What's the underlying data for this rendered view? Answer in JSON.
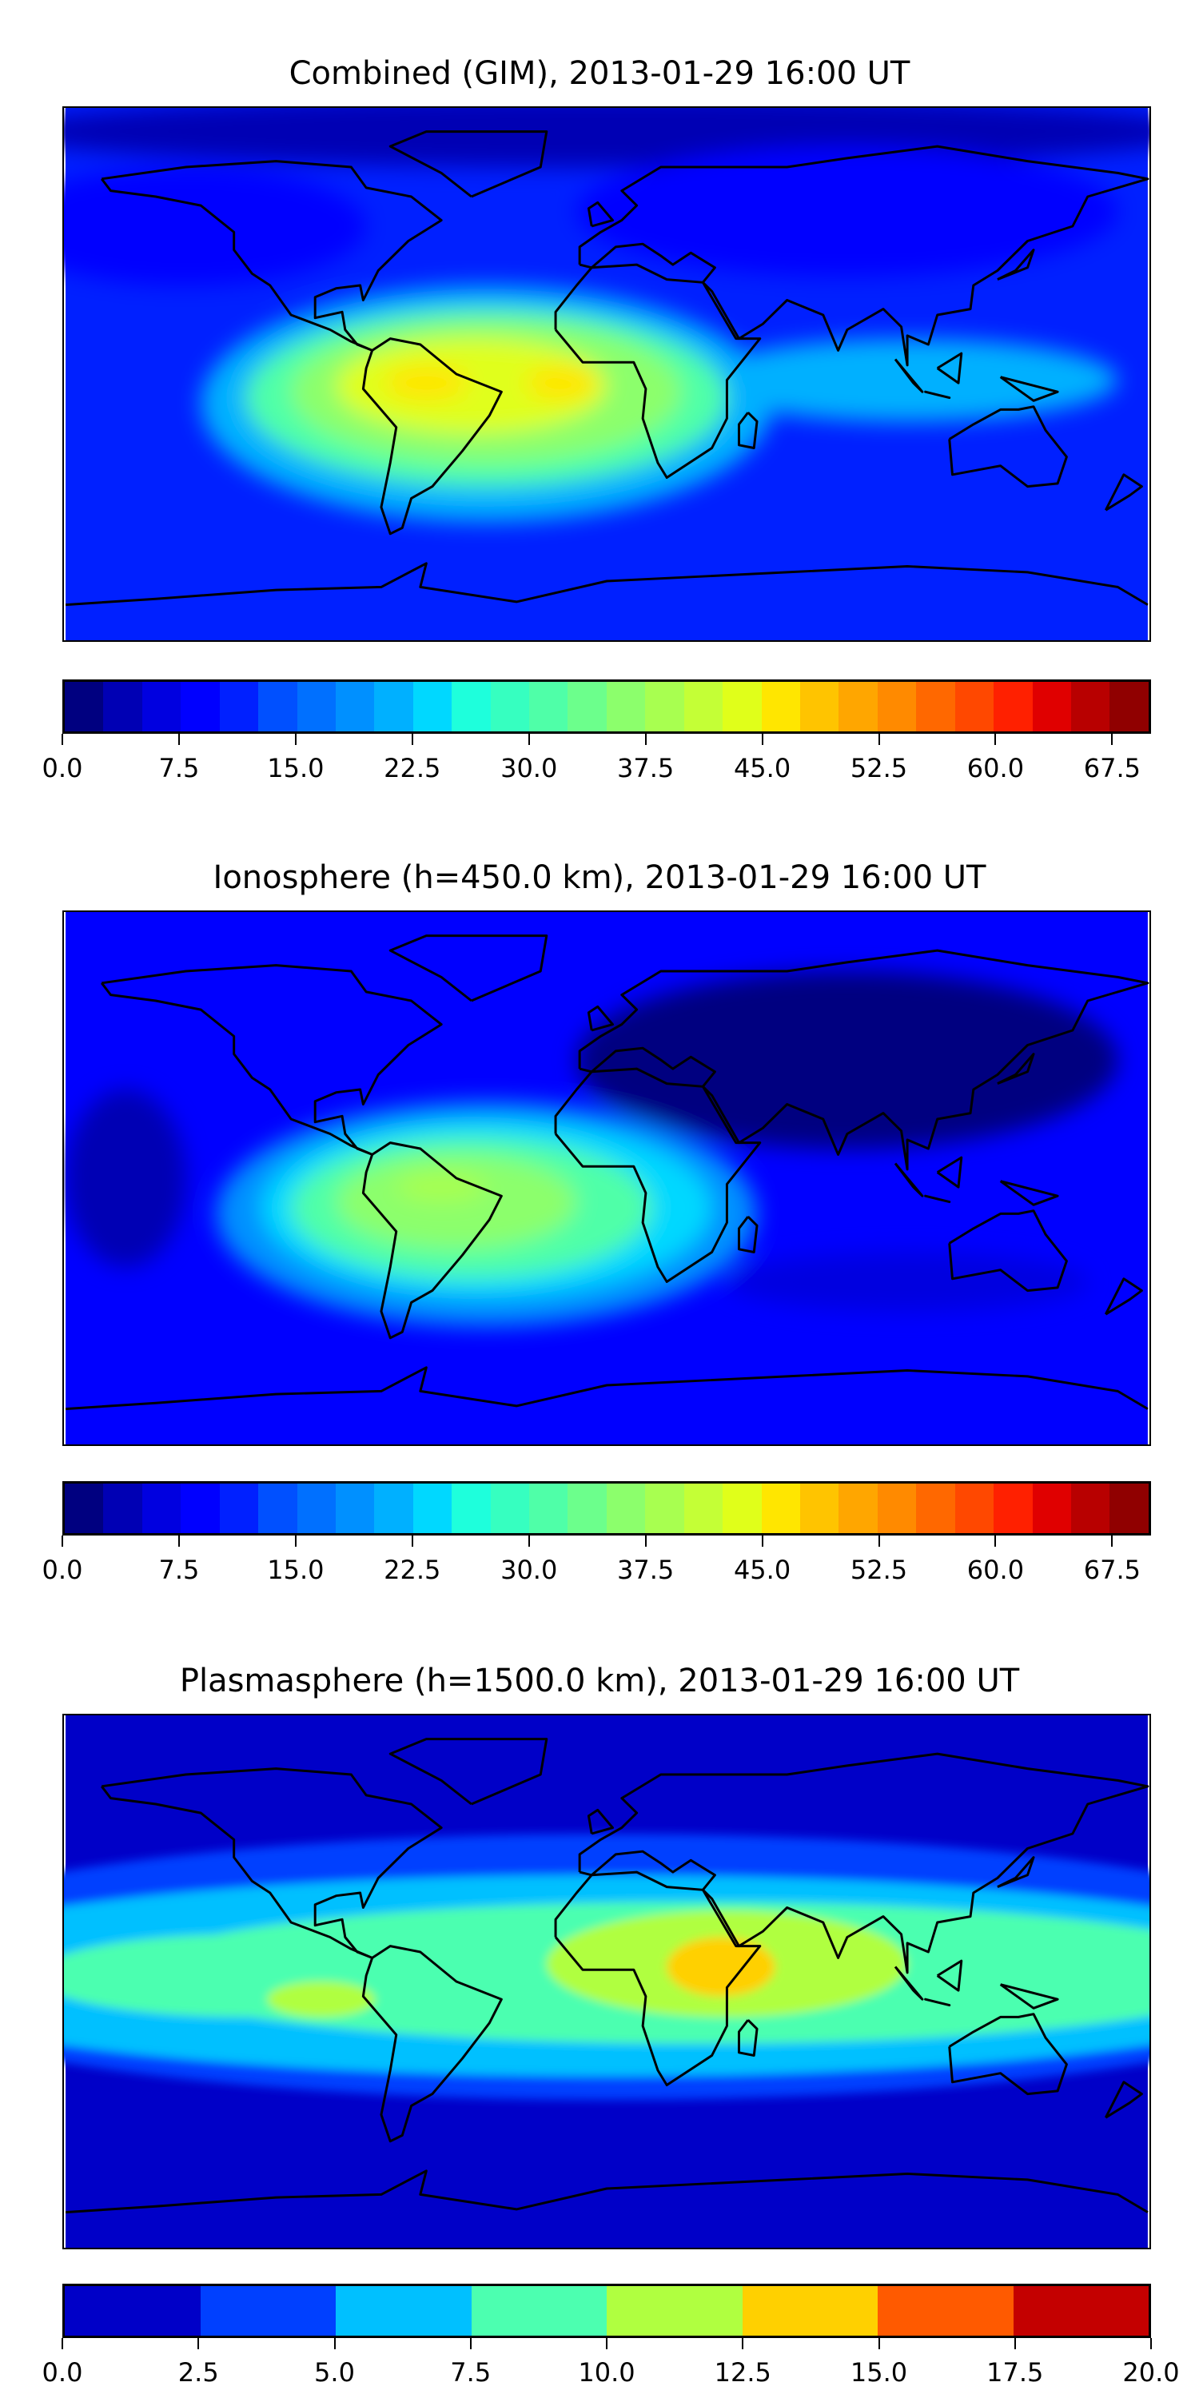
{
  "chart_data": [
    {
      "type": "heatmap",
      "title": "Combined (GIM), 2013-01-29 16:00 UT",
      "xlim": [
        -180,
        180
      ],
      "ylim": [
        -90,
        90
      ],
      "colorbar": {
        "range": [
          0,
          70
        ],
        "step": 2.5,
        "ticks": [
          "0.0",
          "7.5",
          "15.0",
          "22.5",
          "30.0",
          "37.5",
          "45.0",
          "52.5",
          "60.0",
          "67.5"
        ],
        "colors": [
          "#000080",
          "#0000b4",
          "#0000e0",
          "#0000ff",
          "#0020ff",
          "#0050ff",
          "#0070ff",
          "#0090ff",
          "#00b0ff",
          "#00d8ff",
          "#1effdc",
          "#36ffc0",
          "#4fffa8",
          "#6cff8c",
          "#8cff6c",
          "#a8ff50",
          "#c4ff36",
          "#e0ff1a",
          "#ffe600",
          "#ffc400",
          "#ffa600",
          "#ff8a00",
          "#ff6800",
          "#ff4800",
          "#ff2000",
          "#e00000",
          "#b80000",
          "#900000"
        ]
      },
      "background_value": 12,
      "features": [
        {
          "lon": 0,
          "lat": 82,
          "rlon": 200,
          "rlat": 12,
          "value": 4
        },
        {
          "lon": -140,
          "lat": 50,
          "rlon": 60,
          "rlat": 20,
          "value": 8
        },
        {
          "lon": 80,
          "lat": 55,
          "rlon": 90,
          "rlat": 22,
          "value": 9
        },
        {
          "lon": -40,
          "lat": -10,
          "rlon": 95,
          "rlat": 40,
          "value": 22
        },
        {
          "lon": 100,
          "lat": -2,
          "rlon": 70,
          "rlat": 14,
          "value": 22
        },
        {
          "lon": -40,
          "lat": -8,
          "rlon": 80,
          "rlat": 30,
          "value": 30
        },
        {
          "lon": -40,
          "lat": -6,
          "rlon": 65,
          "rlat": 24,
          "value": 37
        },
        {
          "lon": -45,
          "lat": -4,
          "rlon": 45,
          "rlat": 16,
          "value": 43
        },
        {
          "lon": -60,
          "lat": -3,
          "rlon": 14,
          "rlat": 6,
          "value": 47
        },
        {
          "lon": -15,
          "lat": -3,
          "rlon": 12,
          "rlat": 6,
          "value": 47
        }
      ]
    },
    {
      "type": "heatmap",
      "title": "Ionosphere  (h=450.0 km), 2013-01-29 16:00 UT",
      "xlim": [
        -180,
        180
      ],
      "ylim": [
        -90,
        90
      ],
      "colorbar": {
        "range": [
          0,
          70
        ],
        "step": 2.5,
        "ticks": [
          "0.0",
          "7.5",
          "15.0",
          "22.5",
          "30.0",
          "37.5",
          "45.0",
          "52.5",
          "60.0",
          "67.5"
        ],
        "colors": [
          "#000080",
          "#0000b4",
          "#0000e0",
          "#0000ff",
          "#0020ff",
          "#0050ff",
          "#0070ff",
          "#0090ff",
          "#00b0ff",
          "#00d8ff",
          "#1effdc",
          "#36ffc0",
          "#4fffa8",
          "#6cff8c",
          "#8cff6c",
          "#a8ff50",
          "#c4ff36",
          "#e0ff1a",
          "#ffe600",
          "#ffc400",
          "#ffa600",
          "#ff8a00",
          "#ff6800",
          "#ff4800",
          "#ff2000",
          "#e00000",
          "#b80000",
          "#900000"
        ]
      },
      "background_value": 8,
      "features": [
        {
          "lon": 80,
          "lat": 40,
          "rlon": 90,
          "rlat": 30,
          "value": 2
        },
        {
          "lon": -160,
          "lat": 0,
          "rlon": 20,
          "rlat": 30,
          "value": 3
        },
        {
          "lon": 100,
          "lat": -35,
          "rlon": 60,
          "rlat": 10,
          "value": 5
        },
        {
          "lon": -40,
          "lat": -12,
          "rlon": 90,
          "rlat": 38,
          "value": 18
        },
        {
          "lon": -40,
          "lat": -10,
          "rlon": 75,
          "rlat": 30,
          "value": 24
        },
        {
          "lon": -45,
          "lat": -10,
          "rlon": 60,
          "rlat": 24,
          "value": 30
        },
        {
          "lon": -50,
          "lat": -8,
          "rlon": 40,
          "rlat": 16,
          "value": 35
        },
        {
          "lon": -55,
          "lat": -3,
          "rlon": 15,
          "rlat": 5,
          "value": 38
        }
      ]
    },
    {
      "type": "heatmap",
      "title": "Plasmasphere (h=1500.0 km), 2013-01-29 16:00 UT",
      "xlim": [
        -180,
        180
      ],
      "ylim": [
        -90,
        90
      ],
      "colorbar": {
        "range": [
          0,
          20
        ],
        "step": 2.5,
        "ticks": [
          "0.0",
          "2.5",
          "5.0",
          "7.5",
          "10.0",
          "12.5",
          "15.0",
          "17.5",
          "20.0"
        ],
        "colors": [
          "#0000c8",
          "#0040ff",
          "#00c0ff",
          "#4cffb0",
          "#b0ff40",
          "#ffd000",
          "#ff5a00",
          "#c40000"
        ]
      },
      "background_value": 1,
      "features": [
        {
          "lon": 0,
          "lat": 5,
          "rlon": 260,
          "rlat": 45,
          "value": 4
        },
        {
          "lon": 0,
          "lat": 2,
          "rlon": 250,
          "rlat": 34,
          "value": 6
        },
        {
          "lon": 30,
          "lat": 3,
          "rlon": 190,
          "rlat": 24,
          "value": 9
        },
        {
          "lon": -120,
          "lat": 2,
          "rlon": 70,
          "rlat": 14,
          "value": 9
        },
        {
          "lon": 40,
          "lat": 6,
          "rlon": 60,
          "rlat": 18,
          "value": 11
        },
        {
          "lon": -95,
          "lat": -6,
          "rlon": 18,
          "rlat": 6,
          "value": 11
        },
        {
          "lon": 38,
          "lat": 5,
          "rlon": 18,
          "rlat": 10,
          "value": 13
        }
      ]
    }
  ]
}
